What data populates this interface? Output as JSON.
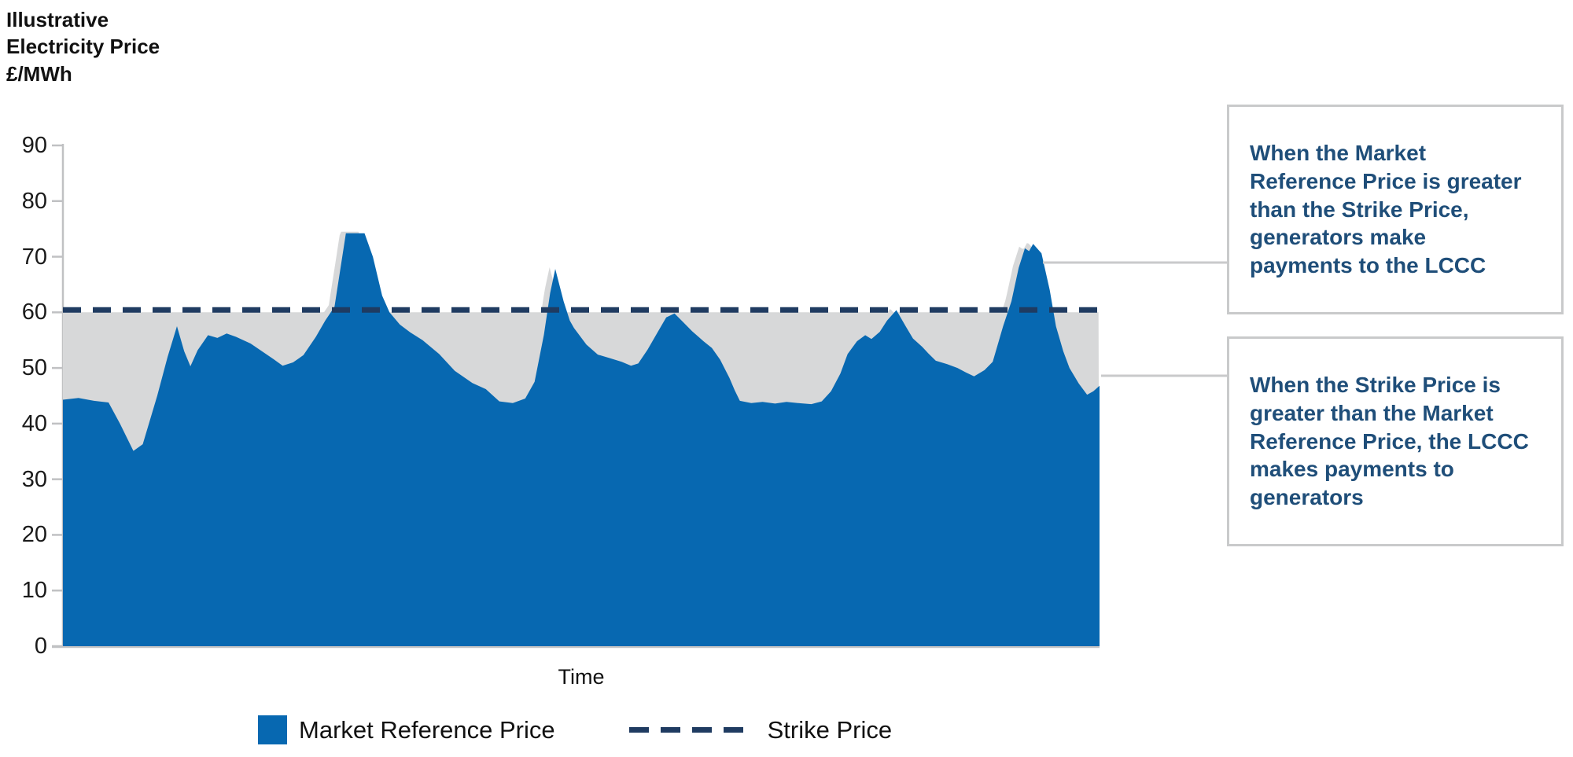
{
  "chart": {
    "title": "Illustrative\nElectricity Price\n£/MWh",
    "xlabel": "Time"
  },
  "legend": {
    "items": [
      {
        "label": "Market Reference Price",
        "swatch": "filled-square",
        "color": "#0768B1"
      },
      {
        "label": "Strike Price",
        "swatch": "dashed-line",
        "color": "#1F3B61"
      }
    ]
  },
  "annotations": [
    {
      "text": "When the Market\nReference Price is greater\nthan the Strike Price,\ngenerators make\npayments to the LCCC"
    },
    {
      "text": "When the Strike Price is\ngreater than the Market\nReference Price, the LCCC\nmakes payments to\ngenerators"
    }
  ],
  "colors": {
    "market_price_area": "#0768B1",
    "difference_area": "#D7D8D9",
    "strike_line": "#1F3B61",
    "axis": "#C0C1C3",
    "connector": "#C9CACB",
    "callout_text": "#1F4E79"
  },
  "chart_data": {
    "type": "area",
    "title": "Illustrative Electricity Price £/MWh",
    "xlabel": "Time",
    "ylabel": "£/MWh",
    "ylim": [
      0,
      90
    ],
    "y_ticks": [
      0,
      10,
      20,
      30,
      40,
      50,
      60,
      70,
      80,
      90
    ],
    "grid": false,
    "legend_position": "bottom",
    "strike_price": 60,
    "series": [
      {
        "name": "Market Reference Price",
        "points": [
          [
            0,
            44.3
          ],
          [
            1.5,
            44.6
          ],
          [
            3.0,
            44.1
          ],
          [
            4.4,
            43.8
          ],
          [
            5.5,
            40.0
          ],
          [
            6.8,
            35.1
          ],
          [
            7.7,
            36.3
          ],
          [
            9.1,
            45.0
          ],
          [
            10.1,
            52.0
          ],
          [
            11.0,
            57.5
          ],
          [
            11.7,
            53.0
          ],
          [
            12.3,
            50.3
          ],
          [
            13.0,
            53.2
          ],
          [
            14.0,
            55.9
          ],
          [
            14.9,
            55.4
          ],
          [
            15.8,
            56.2
          ],
          [
            16.7,
            55.6
          ],
          [
            18.1,
            54.4
          ],
          [
            19.2,
            53.0
          ],
          [
            20.3,
            51.6
          ],
          [
            21.2,
            50.4
          ],
          [
            22.2,
            51.0
          ],
          [
            23.2,
            52.3
          ],
          [
            24.4,
            55.6
          ],
          [
            25.3,
            58.5
          ],
          [
            26.2,
            61.0
          ],
          [
            27.3,
            74.2
          ],
          [
            29.1,
            74.2
          ],
          [
            29.9,
            70.0
          ],
          [
            30.8,
            63.0
          ],
          [
            31.5,
            60.0
          ],
          [
            32.5,
            57.8
          ],
          [
            33.5,
            56.4
          ],
          [
            34.7,
            55.0
          ],
          [
            36.3,
            52.5
          ],
          [
            37.8,
            49.5
          ],
          [
            39.5,
            47.3
          ],
          [
            40.8,
            46.2
          ],
          [
            42.1,
            44.0
          ],
          [
            43.4,
            43.7
          ],
          [
            44.6,
            44.5
          ],
          [
            45.5,
            47.5
          ],
          [
            46.4,
            56.0
          ],
          [
            47.0,
            63.5
          ],
          [
            47.5,
            67.8
          ],
          [
            48.3,
            62.0
          ],
          [
            48.9,
            58.5
          ],
          [
            49.3,
            57.2
          ],
          [
            50.5,
            54.2
          ],
          [
            51.6,
            52.4
          ],
          [
            52.7,
            51.8
          ],
          [
            53.9,
            51.1
          ],
          [
            54.8,
            50.4
          ],
          [
            55.5,
            50.8
          ],
          [
            56.4,
            53.3
          ],
          [
            57.3,
            56.2
          ],
          [
            58.2,
            59.1
          ],
          [
            59.0,
            59.8
          ],
          [
            59.8,
            58.3
          ],
          [
            60.7,
            56.6
          ],
          [
            61.8,
            54.8
          ],
          [
            62.6,
            53.6
          ],
          [
            63.4,
            51.5
          ],
          [
            64.3,
            48.2
          ],
          [
            64.8,
            46.0
          ],
          [
            65.3,
            44.1
          ],
          [
            66.4,
            43.7
          ],
          [
            67.5,
            43.9
          ],
          [
            68.7,
            43.6
          ],
          [
            69.8,
            43.9
          ],
          [
            70.9,
            43.7
          ],
          [
            72.2,
            43.5
          ],
          [
            73.2,
            44.0
          ],
          [
            74.1,
            45.8
          ],
          [
            75.0,
            49.0
          ],
          [
            75.7,
            52.5
          ],
          [
            76.6,
            54.8
          ],
          [
            77.4,
            55.9
          ],
          [
            78.0,
            55.2
          ],
          [
            78.8,
            56.5
          ],
          [
            79.5,
            58.5
          ],
          [
            80.4,
            60.4
          ],
          [
            81.3,
            57.5
          ],
          [
            82.0,
            55.3
          ],
          [
            82.9,
            53.8
          ],
          [
            83.5,
            52.6
          ],
          [
            84.2,
            51.3
          ],
          [
            85.3,
            50.7
          ],
          [
            86.3,
            50.0
          ],
          [
            87.1,
            49.2
          ],
          [
            87.9,
            48.5
          ],
          [
            88.9,
            49.6
          ],
          [
            89.7,
            51.1
          ],
          [
            90.7,
            57.5
          ],
          [
            91.5,
            62.0
          ],
          [
            92.2,
            68.0
          ],
          [
            92.8,
            71.5
          ],
          [
            93.2,
            71.0
          ],
          [
            93.6,
            72.3
          ],
          [
            94.4,
            70.6
          ],
          [
            95.2,
            64.0
          ],
          [
            95.8,
            57.5
          ],
          [
            96.5,
            53.0
          ],
          [
            97.1,
            50.0
          ],
          [
            98.0,
            47.2
          ],
          [
            98.8,
            45.2
          ],
          [
            99.4,
            45.8
          ],
          [
            100,
            46.8
          ]
        ]
      },
      {
        "name": "Strike Price",
        "constant_value": 60
      }
    ]
  }
}
